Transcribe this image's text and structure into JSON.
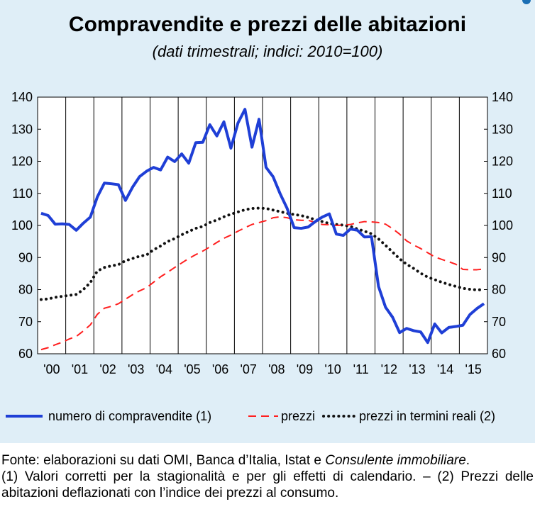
{
  "title": "Compravendite e prezzi delle abitazioni",
  "subtitle": "(dati trimestrali; indici: 2010=100)",
  "chart_data": {
    "type": "line",
    "ylim": [
      60,
      140
    ],
    "yticks": [
      "140",
      "130",
      "120",
      "110",
      "100",
      "90",
      "80",
      "70",
      "60"
    ],
    "years": [
      "'00",
      "'01",
      "'02",
      "'03",
      "'04",
      "'05",
      "'06",
      "'07",
      "'08",
      "'09",
      "'10",
      "'11",
      "'12",
      "'13",
      "'14",
      "'15"
    ],
    "grid": "vertical lines at year boundaries",
    "legend": "bottom",
    "series": [
      {
        "name": "numero di compravendite (1)",
        "color": "#1f3fd6",
        "style": "solid",
        "values": [
          103.8,
          103.1,
          100.4,
          100.5,
          100.3,
          98.5,
          100.7,
          102.6,
          108.9,
          113.2,
          113.0,
          112.7,
          107.8,
          111.9,
          115.2,
          116.9,
          118.1,
          117.3,
          121.3,
          119.9,
          122.3,
          119.4,
          125.8,
          125.9,
          131.4,
          127.9,
          132.3,
          124.1,
          131.9,
          136.2,
          124.4,
          133.1,
          118.1,
          115.2,
          109.9,
          105.3,
          99.3,
          99.1,
          99.5,
          101.2,
          102.6,
          103.6,
          97.3,
          96.9,
          98.9,
          98.5,
          96.4,
          96.5,
          81.0,
          74.5,
          71.4,
          66.6,
          67.9,
          67.2,
          66.8,
          63.5,
          69.3,
          66.5,
          68.2,
          68.5,
          68.9,
          72.2,
          74.1,
          75.6
        ]
      },
      {
        "name": "prezzi",
        "color": "#ff2020",
        "style": "dashed",
        "values": [
          61.3,
          61.9,
          62.8,
          63.6,
          64.6,
          65.4,
          67.1,
          69.0,
          72.3,
          74.2,
          74.8,
          75.6,
          77.0,
          78.4,
          79.6,
          80.6,
          82.3,
          84.0,
          85.4,
          86.9,
          88.3,
          89.7,
          90.9,
          92.0,
          93.3,
          94.7,
          96.0,
          97.0,
          98.2,
          99.3,
          100.3,
          100.9,
          101.5,
          102.4,
          102.7,
          102.4,
          101.8,
          101.6,
          101.6,
          100.9,
          100.3,
          100.2,
          100.0,
          100.1,
          100.3,
          100.8,
          101.2,
          101.1,
          100.9,
          100.4,
          99.0,
          97.3,
          95.2,
          93.9,
          92.8,
          91.5,
          90.2,
          89.4,
          88.7,
          87.9,
          86.3,
          86.2,
          86.2,
          86.4
        ]
      },
      {
        "name": "prezzi in termini reali (2)",
        "color": "#111111",
        "style": "dotted",
        "values": [
          76.9,
          77.1,
          77.6,
          77.9,
          78.2,
          78.5,
          80.0,
          82.2,
          85.8,
          86.9,
          87.4,
          87.8,
          89.0,
          89.7,
          90.4,
          90.8,
          92.4,
          93.6,
          95.0,
          95.9,
          97.1,
          98.1,
          99.1,
          99.7,
          100.9,
          101.7,
          102.7,
          103.5,
          104.2,
          104.9,
          105.3,
          105.4,
          105.3,
          104.8,
          104.3,
          103.8,
          103.4,
          103.1,
          102.5,
          101.8,
          101.2,
          100.6,
          100.3,
          100.1,
          99.7,
          98.9,
          98.2,
          97.4,
          95.8,
          93.8,
          91.7,
          89.6,
          87.9,
          86.6,
          85.1,
          83.9,
          83.1,
          82.3,
          81.6,
          81.0,
          80.4,
          80.1,
          79.9,
          80.0
        ]
      }
    ]
  },
  "notes": {
    "source_prefix": "Fonte: elaborazioni su dati OMI, Banca d’Italia, Istat e ",
    "source_italic": "Consulente immobiliare",
    "source_suffix": ".",
    "footnote": "(1) Valori corretti per la stagionalità e per gli effetti di calendario. – (2) Prezzi delle abitazioni deflazionati con l’indice dei prezzi al consumo."
  }
}
